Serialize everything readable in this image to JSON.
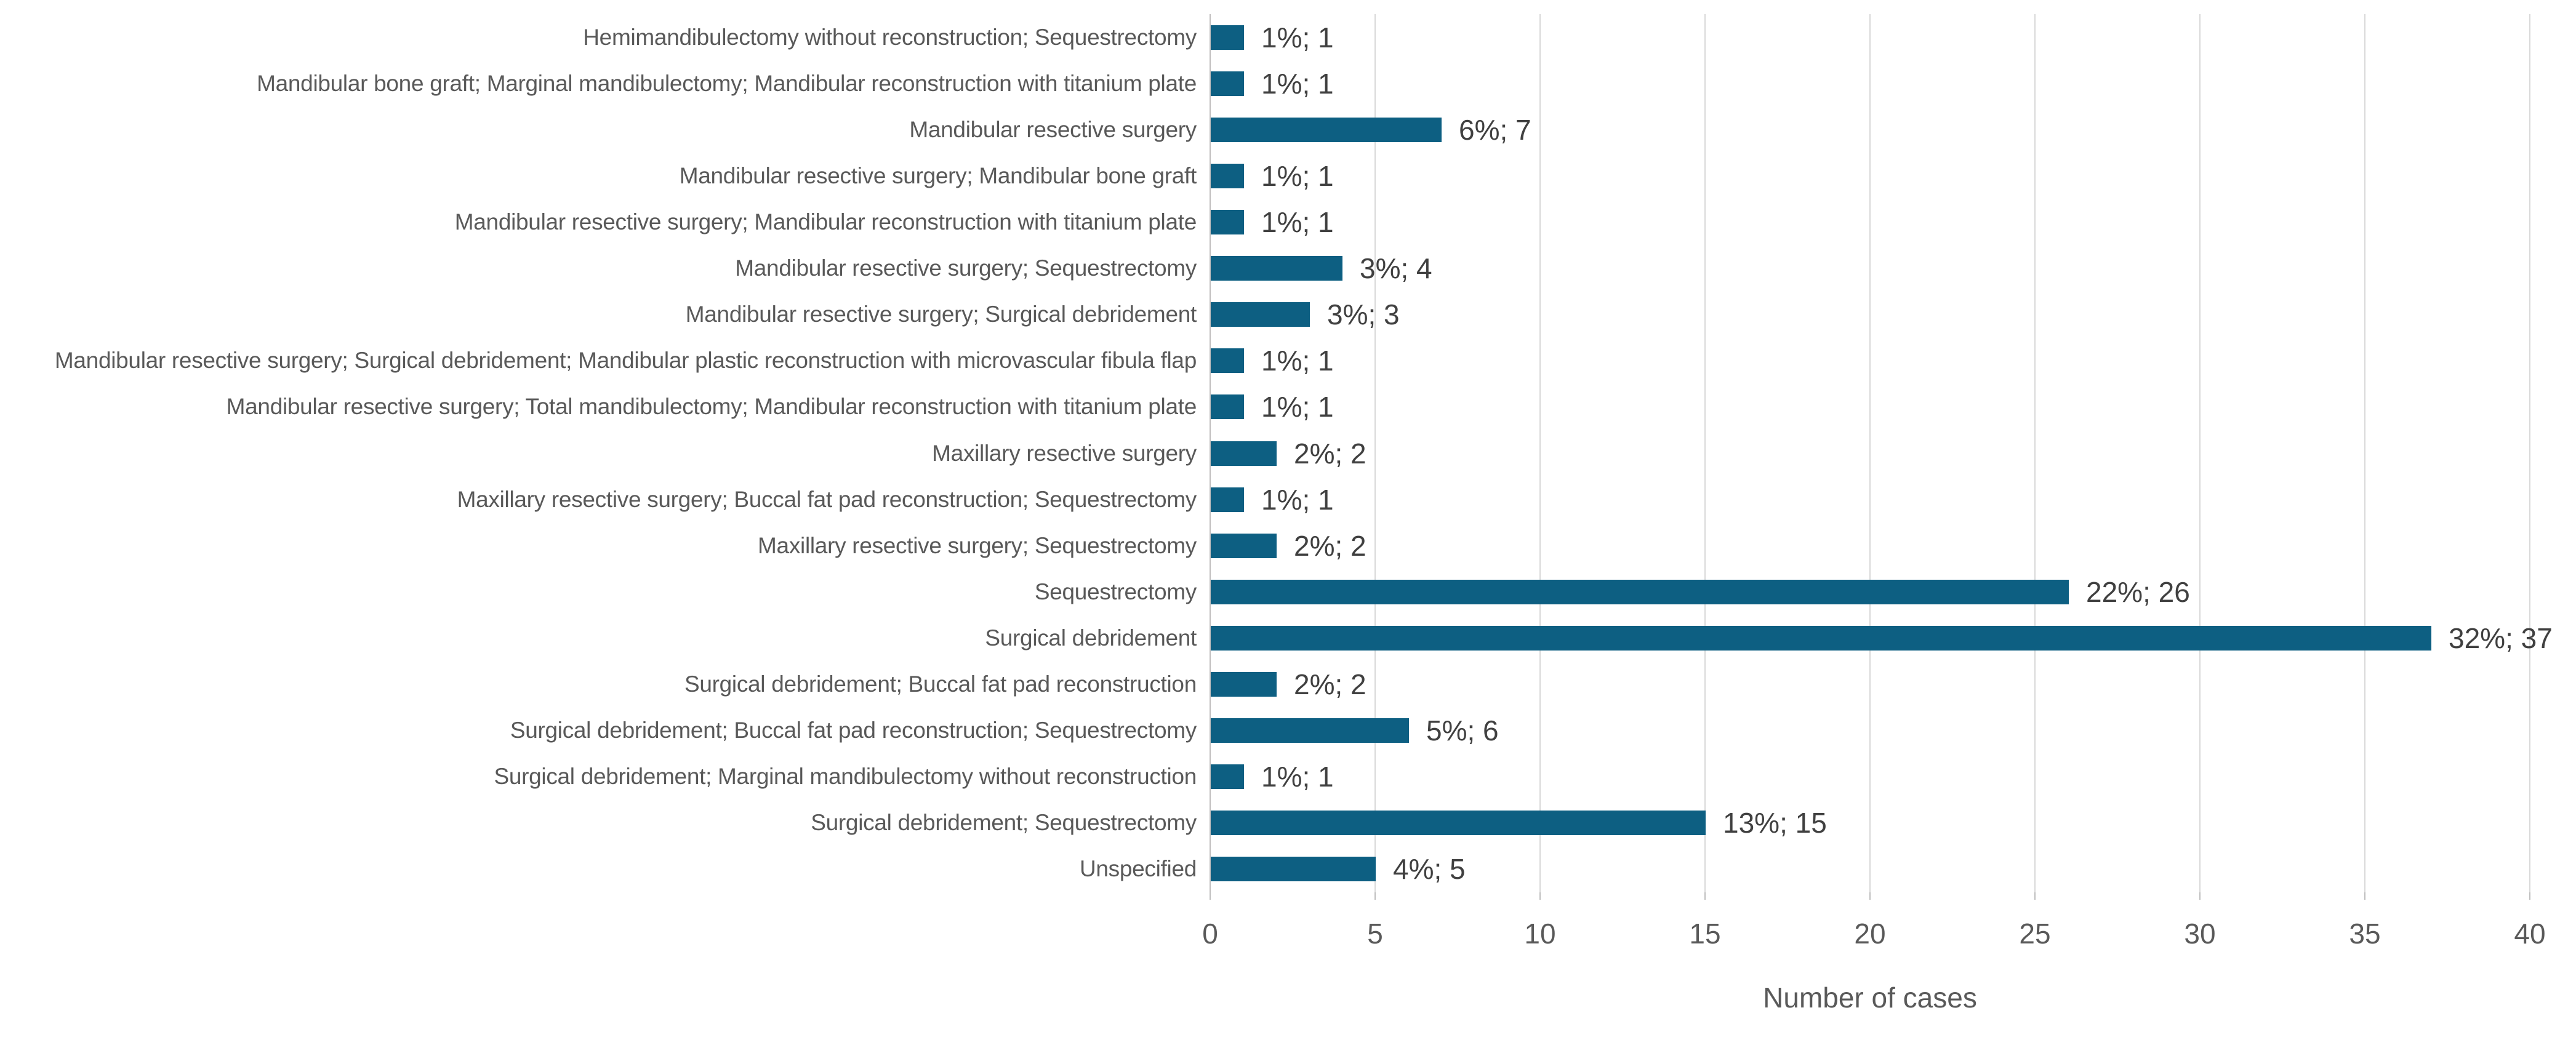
{
  "chart_data": {
    "type": "bar",
    "orientation": "horizontal",
    "title": "",
    "xlabel": "Number of cases",
    "ylabel": "",
    "xlim": [
      0,
      40
    ],
    "xticks": [
      0,
      5,
      10,
      15,
      20,
      25,
      30,
      35,
      40
    ],
    "grid": "vertical-gridlines-on",
    "legend_position": "none",
    "categories": [
      "Hemimandibulectomy without reconstruction; Sequestrectomy",
      "Mandibular bone graft; Marginal mandibulectomy; Mandibular reconstruction with titanium plate",
      "Mandibular resective surgery",
      "Mandibular resective surgery; Mandibular bone graft",
      "Mandibular resective surgery; Mandibular reconstruction with titanium plate",
      "Mandibular resective surgery; Sequestrectomy",
      "Mandibular resective surgery; Surgical debridement",
      "Mandibular resective surgery; Surgical debridement; Mandibular plastic reconstruction with microvascular fibula flap",
      "Mandibular resective surgery; Total mandibulectomy; Mandibular reconstruction with titanium plate",
      "Maxillary resective surgery",
      "Maxillary resective surgery; Buccal fat pad reconstruction; Sequestrectomy",
      "Maxillary resective surgery; Sequestrectomy",
      "Sequestrectomy",
      "Surgical debridement",
      "Surgical debridement; Buccal fat pad reconstruction",
      "Surgical debridement; Buccal fat pad reconstruction; Sequestrectomy",
      "Surgical debridement; Marginal mandibulectomy without reconstruction",
      "Surgical debridement; Sequestrectomy",
      "Unspecified"
    ],
    "values": [
      1,
      1,
      7,
      1,
      1,
      4,
      3,
      1,
      1,
      2,
      1,
      2,
      26,
      37,
      2,
      6,
      1,
      15,
      5
    ],
    "data_labels": [
      "1%; 1",
      "1%; 1",
      "6%; 7",
      "1%; 1",
      "1%; 1",
      "3%; 4",
      "3%; 3",
      "1%; 1",
      "1%; 1",
      "2%; 2",
      "1%; 1",
      "2%; 2",
      "22%; 26",
      "32%; 37",
      "2%; 2",
      "5%; 6",
      "1%; 1",
      "13%; 15",
      "4%; 5"
    ]
  },
  "colors": {
    "bar": "#0d5f82",
    "gridline": "#d9d9d9",
    "axis_line": "#c0bebe",
    "category_text": "#595959",
    "value_text": "#404040",
    "tick_text": "#595959"
  }
}
